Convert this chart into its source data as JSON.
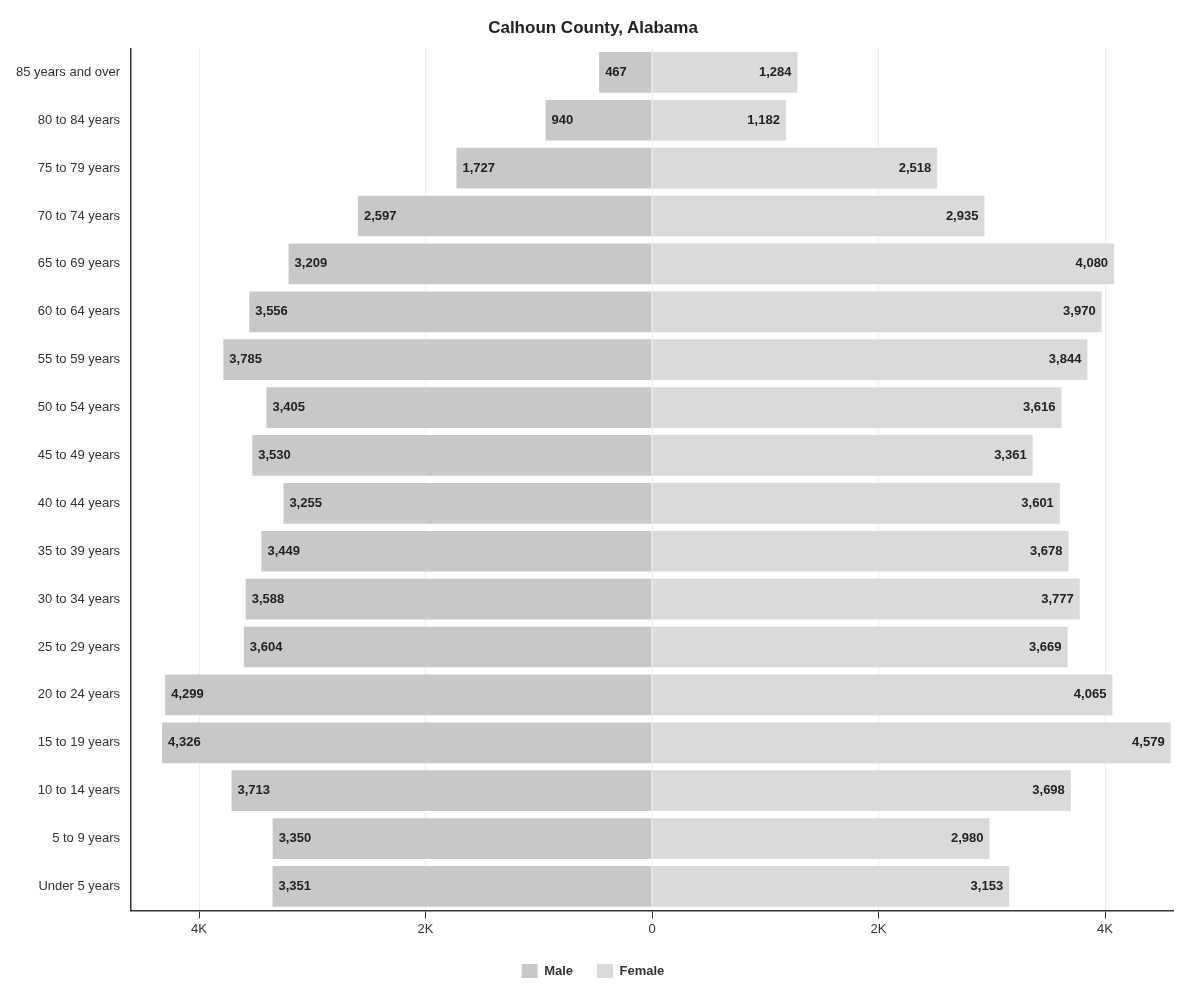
{
  "chart_data": {
    "type": "bar",
    "orientation": "horizontal",
    "title": "Calhoun County, Alabama",
    "categories": [
      "85 years and over",
      "80 to 84 years",
      "75 to 79 years",
      "70 to 74 years",
      "65 to 69 years",
      "60 to 64 years",
      "55 to 59 years",
      "50 to 54 years",
      "45 to 49 years",
      "40 to 44 years",
      "35 to 39 years",
      "30 to 34 years",
      "25 to 29 years",
      "20 to 24 years",
      "15 to 19 years",
      "10 to 14 years",
      "5 to 9 years",
      "Under 5 years"
    ],
    "series": [
      {
        "name": "Male",
        "color": "#c8c8c8",
        "values": [
          467,
          940,
          1727,
          2597,
          3209,
          3556,
          3785,
          3405,
          3530,
          3255,
          3449,
          3588,
          3604,
          4299,
          4326,
          3713,
          3350,
          3351
        ],
        "base": [
          -467,
          -940,
          -1727,
          -2597,
          -3209,
          -3556,
          -3785,
          -3405,
          -3530,
          -3255,
          -3449,
          -3588,
          -3604,
          -4299,
          -4326,
          -3713,
          -3350,
          -3351
        ],
        "value_labels": [
          "467",
          "940",
          "1,727",
          "2,597",
          "3,209",
          "3,556",
          "3,785",
          "3,405",
          "3,530",
          "3,255",
          "3,449",
          "3,588",
          "3,604",
          "4,299",
          "4,326",
          "3,713",
          "3,350",
          "3,351"
        ]
      },
      {
        "name": "Female",
        "color": "#dadada",
        "values": [
          1284,
          1182,
          2518,
          2935,
          4080,
          3970,
          3844,
          3616,
          3361,
          3601,
          3678,
          3777,
          3669,
          4065,
          4579,
          3698,
          2980,
          3153
        ],
        "value_labels": [
          "1,284",
          "1,182",
          "2,518",
          "2,935",
          "4,080",
          "3,970",
          "3,844",
          "3,616",
          "3,361",
          "3,601",
          "3,678",
          "3,777",
          "3,669",
          "4,065",
          "4,579",
          "3,698",
          "2,980",
          "3,153"
        ]
      }
    ],
    "xlim": [
      -4600,
      4600
    ],
    "xticks": [
      {
        "value": -4000,
        "label": "4K"
      },
      {
        "value": -2000,
        "label": "2K"
      },
      0,
      {
        "value": 2000,
        "label": "2K"
      },
      {
        "value": 4000,
        "label": "4K"
      }
    ],
    "grid": "x",
    "legend": "bottom"
  }
}
